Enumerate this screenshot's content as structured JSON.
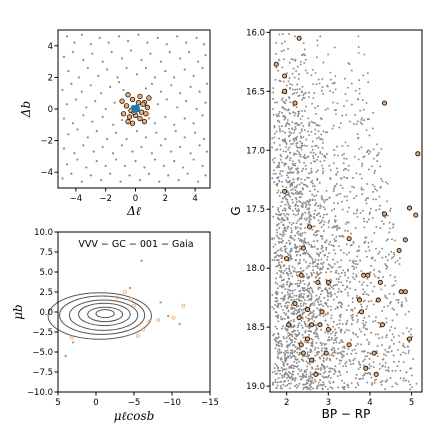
{
  "chart_data": [
    {
      "type": "scatter",
      "title": "",
      "xlabel": "Δℓ",
      "ylabel": "Δb",
      "xlim": [
        -5.2,
        5.0
      ],
      "ylim": [
        -5.0,
        5.0
      ],
      "xticks": [
        -4,
        -2,
        0,
        2,
        4
      ],
      "yticks": [
        -4,
        -2,
        0,
        2,
        4
      ],
      "grid": false,
      "series": [
        {
          "role": "field",
          "color": "#8c8c8c",
          "points": [
            [
              -4.6,
              4.6
            ],
            [
              -4.1,
              4.2
            ],
            [
              -3.6,
              4.7
            ],
            [
              -3.0,
              4.1
            ],
            [
              -2.4,
              4.5
            ],
            [
              -1.8,
              4.2
            ],
            [
              -1.1,
              4.6
            ],
            [
              -0.5,
              4.3
            ],
            [
              0.2,
              4.7
            ],
            [
              0.8,
              4.2
            ],
            [
              1.5,
              4.5
            ],
            [
              2.1,
              4.1
            ],
            [
              2.8,
              4.6
            ],
            [
              3.4,
              4.2
            ],
            [
              4.1,
              4.5
            ],
            [
              4.6,
              4.1
            ],
            [
              -4.8,
              3.3
            ],
            [
              -4.2,
              3.6
            ],
            [
              -3.5,
              3.1
            ],
            [
              -2.9,
              3.5
            ],
            [
              -2.2,
              3.0
            ],
            [
              -1.6,
              3.6
            ],
            [
              -0.9,
              3.2
            ],
            [
              -0.3,
              3.7
            ],
            [
              0.4,
              3.1
            ],
            [
              1.0,
              3.5
            ],
            [
              1.7,
              3.0
            ],
            [
              2.3,
              3.6
            ],
            [
              3.0,
              3.2
            ],
            [
              3.6,
              3.6
            ],
            [
              4.2,
              3.0
            ],
            [
              4.7,
              3.4
            ],
            [
              -4.5,
              2.4
            ],
            [
              -3.8,
              2.0
            ],
            [
              -3.2,
              2.6
            ],
            [
              -2.5,
              2.1
            ],
            [
              -1.9,
              2.5
            ],
            [
              -1.2,
              2.0
            ],
            [
              -0.6,
              2.6
            ],
            [
              0.1,
              2.2
            ],
            [
              0.7,
              2.6
            ],
            [
              1.3,
              2.0
            ],
            [
              2.0,
              2.4
            ],
            [
              2.6,
              2.0
            ],
            [
              3.3,
              2.5
            ],
            [
              3.9,
              2.1
            ],
            [
              4.5,
              2.6
            ],
            [
              -4.9,
              1.2
            ],
            [
              -4.3,
              1.6
            ],
            [
              -3.6,
              1.1
            ],
            [
              -3.0,
              1.5
            ],
            [
              -2.3,
              1.0
            ],
            [
              -1.7,
              1.4
            ],
            [
              -1.1,
              1.7
            ],
            [
              1.1,
              1.6
            ],
            [
              1.7,
              1.1
            ],
            [
              2.4,
              1.5
            ],
            [
              3.0,
              1.0
            ],
            [
              3.7,
              1.4
            ],
            [
              4.3,
              1.1
            ],
            [
              4.8,
              1.6
            ],
            [
              -4.6,
              0.3
            ],
            [
              -4.0,
              0.6
            ],
            [
              -3.3,
              0.1
            ],
            [
              -2.7,
              0.5
            ],
            [
              -2.0,
              0.0
            ],
            [
              -1.4,
              0.4
            ],
            [
              1.5,
              0.3
            ],
            [
              2.1,
              0.6
            ],
            [
              2.8,
              0.1
            ],
            [
              3.4,
              0.5
            ],
            [
              4.1,
              0.0
            ],
            [
              4.7,
              0.4
            ],
            [
              -4.8,
              -0.6
            ],
            [
              -4.2,
              -0.9
            ],
            [
              -3.5,
              -0.4
            ],
            [
              -2.9,
              -0.8
            ],
            [
              -2.2,
              -0.5
            ],
            [
              -1.5,
              -1.0
            ],
            [
              1.3,
              -0.9
            ],
            [
              2.0,
              -0.5
            ],
            [
              2.6,
              -1.0
            ],
            [
              3.3,
              -0.6
            ],
            [
              3.9,
              -0.9
            ],
            [
              4.5,
              -0.4
            ],
            [
              -4.5,
              -1.6
            ],
            [
              -3.9,
              -1.3
            ],
            [
              -3.2,
              -1.8
            ],
            [
              -2.6,
              -1.4
            ],
            [
              -1.9,
              -1.9
            ],
            [
              -1.3,
              -1.5
            ],
            [
              -0.6,
              -1.9
            ],
            [
              0.1,
              -1.4
            ],
            [
              0.7,
              -1.8
            ],
            [
              1.4,
              -1.5
            ],
            [
              2.0,
              -1.9
            ],
            [
              2.7,
              -1.4
            ],
            [
              3.3,
              -1.8
            ],
            [
              4.0,
              -1.5
            ],
            [
              4.6,
              -1.9
            ],
            [
              -4.8,
              -2.5
            ],
            [
              -4.1,
              -2.8
            ],
            [
              -3.5,
              -2.3
            ],
            [
              -2.8,
              -2.7
            ],
            [
              -2.2,
              -2.4
            ],
            [
              -1.5,
              -2.8
            ],
            [
              -0.9,
              -2.3
            ],
            [
              -0.2,
              -2.7
            ],
            [
              0.4,
              -2.4
            ],
            [
              1.1,
              -2.8
            ],
            [
              1.7,
              -2.3
            ],
            [
              2.4,
              -2.7
            ],
            [
              3.0,
              -2.4
            ],
            [
              3.7,
              -2.8
            ],
            [
              4.3,
              -2.3
            ],
            [
              4.8,
              -2.7
            ],
            [
              -4.6,
              -3.5
            ],
            [
              -3.9,
              -3.2
            ],
            [
              -3.3,
              -3.7
            ],
            [
              -2.6,
              -3.3
            ],
            [
              -2.0,
              -3.6
            ],
            [
              -1.3,
              -3.2
            ],
            [
              -0.7,
              -3.6
            ],
            [
              0.0,
              -3.3
            ],
            [
              0.6,
              -3.7
            ],
            [
              1.3,
              -3.2
            ],
            [
              1.9,
              -3.6
            ],
            [
              2.6,
              -3.3
            ],
            [
              3.2,
              -3.7
            ],
            [
              3.9,
              -3.2
            ],
            [
              4.5,
              -3.6
            ],
            [
              -4.9,
              -4.4
            ],
            [
              -4.3,
              -4.1
            ],
            [
              -3.6,
              -4.6
            ],
            [
              -3.0,
              -4.2
            ],
            [
              -2.3,
              -4.5
            ],
            [
              -1.7,
              -4.1
            ],
            [
              -1.0,
              -4.6
            ],
            [
              -0.4,
              -4.2
            ],
            [
              0.3,
              -4.5
            ],
            [
              0.9,
              -4.1
            ],
            [
              1.6,
              -4.6
            ],
            [
              2.2,
              -4.2
            ],
            [
              2.9,
              -4.5
            ],
            [
              3.5,
              -4.1
            ],
            [
              4.2,
              -4.6
            ],
            [
              4.7,
              -4.2
            ],
            [
              -0.8,
              1.2
            ],
            [
              0.7,
              1.3
            ],
            [
              -0.9,
              -0.7
            ],
            [
              0.9,
              -0.6
            ]
          ]
        },
        {
          "role": "cluster",
          "color": "#f0a868",
          "points": [
            [
              -0.5,
              0.9
            ],
            [
              -0.2,
              0.6
            ],
            [
              0.3,
              0.8
            ],
            [
              0.6,
              0.4
            ],
            [
              -0.6,
              0.2
            ],
            [
              -0.3,
              -0.1
            ],
            [
              0.1,
              0.1
            ],
            [
              0.4,
              -0.2
            ],
            [
              0.8,
              0.1
            ],
            [
              -0.8,
              -0.3
            ],
            [
              -0.4,
              -0.5
            ],
            [
              0.0,
              -0.4
            ],
            [
              0.3,
              -0.6
            ],
            [
              0.6,
              -0.8
            ],
            [
              -0.2,
              -0.9
            ],
            [
              0.9,
              0.7
            ],
            [
              -0.9,
              0.5
            ],
            [
              0.2,
              0.4
            ],
            [
              -0.1,
              -0.2
            ],
            [
              0.5,
              0.3
            ],
            [
              -0.5,
              -0.8
            ],
            [
              0.7,
              -0.3
            ]
          ]
        },
        {
          "role": "center",
          "color": "#1f77b4",
          "points": [
            [
              0.0,
              0.0
            ],
            [
              0.1,
              0.15
            ],
            [
              -0.1,
              -0.1
            ],
            [
              0.15,
              -0.05
            ],
            [
              -0.15,
              0.1
            ]
          ]
        }
      ]
    },
    {
      "type": "scatter",
      "title": "VVV − GC − 001 − Gaia",
      "xlabel": "μℓcosb",
      "ylabel": "μb",
      "xlim": [
        5,
        -15
      ],
      "ylim": [
        -10,
        10
      ],
      "xticks": [
        5,
        0,
        -5,
        -10,
        -15
      ],
      "yticks": [
        -10.0,
        -7.5,
        -5.0,
        -2.5,
        0.0,
        2.5,
        5.0,
        7.5,
        10.0
      ],
      "ytick_labels": [
        "−10.0",
        "−7.5",
        "−5.0",
        "−2.5",
        "0.0",
        "2.5",
        "5.0",
        "7.5",
        "10.0"
      ],
      "xtick_labels": [
        "5",
        "0",
        "−5",
        "−10",
        "−15"
      ],
      "grid": false,
      "contour_levels": [
        {
          "cx": -0.5,
          "cy": -0.5,
          "rx": 6.8,
          "ry": 2.9
        },
        {
          "cx": -0.8,
          "cy": -0.4,
          "rx": 5.6,
          "ry": 2.4
        },
        {
          "cx": -1.0,
          "cy": -0.4,
          "rx": 4.5,
          "ry": 1.9
        },
        {
          "cx": -1.1,
          "cy": -0.3,
          "rx": 3.4,
          "ry": 1.4
        },
        {
          "cx": -1.2,
          "cy": -0.3,
          "rx": 2.3,
          "ry": 0.9
        },
        {
          "cx": -1.2,
          "cy": -0.2,
          "rx": 1.2,
          "ry": 0.5
        }
      ],
      "series": [
        {
          "role": "field",
          "color": "#a0a0a0",
          "points": [
            [
              -6.0,
              6.4
            ],
            [
              -8.5,
              1.2
            ],
            [
              -11.0,
              -1.5
            ],
            [
              4.0,
              -5.5
            ],
            [
              -4.5,
              3.0
            ],
            [
              -9.5,
              -0.5
            ],
            [
              3.0,
              -3.8
            ]
          ]
        },
        {
          "role": "cluster",
          "color": "#f0a868",
          "points": [
            [
              -3.8,
              2.5
            ],
            [
              -4.6,
              1.6
            ],
            [
              -5.0,
              0.8
            ],
            [
              -7.0,
              -1.2
            ],
            [
              -10.2,
              -0.7
            ],
            [
              -11.5,
              0.8
            ],
            [
              3.2,
              -3.2
            ],
            [
              -2.8,
              1.8
            ],
            [
              -8.2,
              -1.0
            ],
            [
              -6.2,
              -2.2
            ],
            [
              -5.5,
              -3.0
            ]
          ]
        }
      ]
    },
    {
      "type": "scatter",
      "title": "",
      "xlabel": "BP − RP",
      "ylabel": "G",
      "xlim": [
        1.6,
        5.25
      ],
      "ylim": [
        19.05,
        15.98
      ],
      "xticks": [
        2,
        3,
        4,
        5
      ],
      "yticks": [
        16.0,
        16.5,
        17.0,
        17.5,
        18.0,
        18.5,
        19.0
      ],
      "ytick_labels": [
        "16.0",
        "16.5",
        "17.0",
        "17.5",
        "18.0",
        "18.5",
        "19.0"
      ],
      "grid": false,
      "field_color": "#8c8c8c",
      "series": [
        {
          "role": "cluster",
          "color": "#f0a868",
          "points": [
            [
              2.3,
              16.05
            ],
            [
              1.75,
              16.27
            ],
            [
              1.95,
              16.37
            ],
            [
              1.95,
              16.5
            ],
            [
              2.2,
              16.6
            ],
            [
              4.35,
              16.6
            ],
            [
              5.15,
              17.03
            ],
            [
              1.95,
              17.35
            ],
            [
              4.95,
              17.49
            ],
            [
              4.35,
              17.54
            ],
            [
              5.1,
              17.55
            ],
            [
              2.55,
              17.65
            ],
            [
              3.5,
              17.75
            ],
            [
              4.85,
              17.76
            ],
            [
              2.4,
              17.83
            ],
            [
              4.7,
              17.85
            ],
            [
              2.0,
              17.92
            ],
            [
              3.85,
              18.06
            ],
            [
              3.95,
              18.06
            ],
            [
              2.35,
              18.06
            ],
            [
              2.75,
              18.12
            ],
            [
              3.0,
              18.12
            ],
            [
              4.25,
              18.12
            ],
            [
              4.75,
              18.2
            ],
            [
              4.85,
              18.2
            ],
            [
              3.75,
              18.27
            ],
            [
              4.2,
              18.27
            ],
            [
              2.2,
              18.3
            ],
            [
              2.5,
              18.35
            ],
            [
              2.85,
              18.37
            ],
            [
              3.8,
              18.37
            ],
            [
              2.3,
              18.42
            ],
            [
              2.05,
              18.48
            ],
            [
              2.6,
              18.48
            ],
            [
              2.8,
              18.48
            ],
            [
              4.3,
              18.48
            ],
            [
              3.0,
              18.52
            ],
            [
              2.5,
              18.6
            ],
            [
              4.95,
              18.6
            ],
            [
              2.35,
              18.65
            ],
            [
              3.5,
              18.65
            ],
            [
              2.4,
              18.72
            ],
            [
              2.95,
              18.72
            ],
            [
              4.1,
              18.72
            ],
            [
              2.6,
              18.78
            ],
            [
              3.9,
              18.85
            ],
            [
              2.7,
              18.9
            ],
            [
              4.15,
              18.9
            ]
          ]
        }
      ]
    }
  ]
}
